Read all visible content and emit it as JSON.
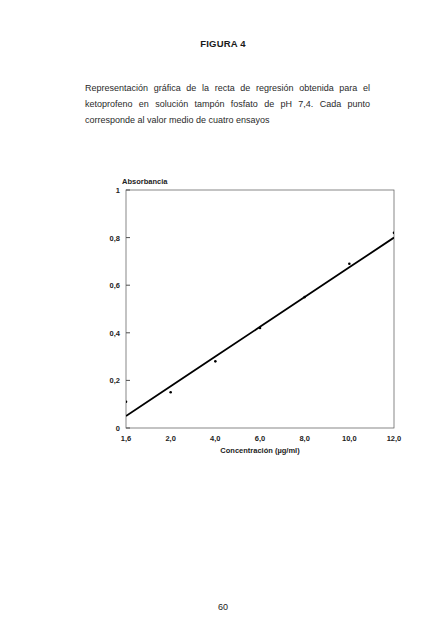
{
  "chart_data": {
    "type": "scatter",
    "title": "FIGURA 4",
    "subtitle": "Representación gráfica de la recta de regresión obtenida para el ketoprofeno en solución tampón fosfato de pH 7,4. Cada punto corresponde al valor medio de cuatro ensayos",
    "y_label": "Absorbancia",
    "x_label": "Concentración (µg/ml)",
    "categories": [
      "1,6",
      "2,0",
      "4,0",
      "6,0",
      "8,0",
      "10,0",
      "12,0"
    ],
    "series": [
      {
        "type": "scatter",
        "marker": "point",
        "color": "#000000",
        "values": [
          0.11,
          0.15,
          0.28,
          0.42,
          0.55,
          0.69,
          0.82
        ]
      },
      {
        "type": "line",
        "line_style": "solid",
        "color": "#000000",
        "values": [
          0.05,
          0.175,
          0.3,
          0.425,
          0.55,
          0.675,
          0.8
        ]
      }
    ],
    "ylim": [
      0,
      1
    ],
    "yticks": [
      0,
      {
        "value": 0.2,
        "label": "0,2"
      },
      {
        "value": 0.4,
        "label": "0,4"
      },
      {
        "value": 0.6,
        "label": "0,6"
      },
      {
        "value": 0.8,
        "label": "0,8"
      },
      1
    ],
    "grid": false
  },
  "page_number": "60"
}
